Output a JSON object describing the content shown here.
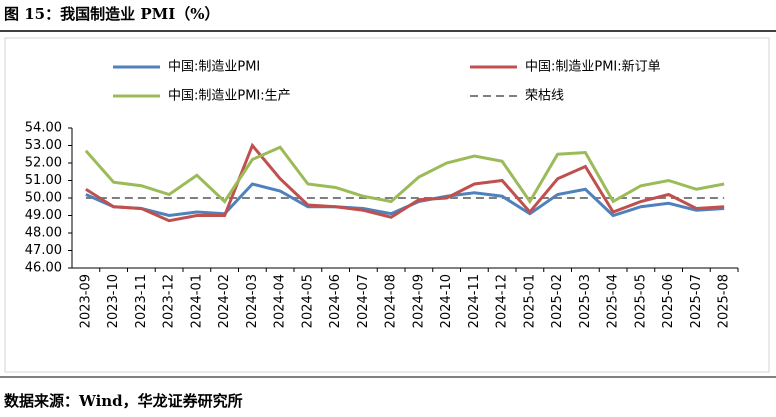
{
  "chart_data": {
    "type": "line",
    "title": "图 15：我国制造业 PMI（%）",
    "source": "数据来源：Wind，华龙证券研究所",
    "categories": [
      "2023-09",
      "2023-10",
      "2023-11",
      "2023-12",
      "2024-01",
      "2024-02",
      "2024-03",
      "2024-04",
      "2024-05",
      "2024-06",
      "2024-07",
      "2024-08",
      "2024-09",
      "2024-10",
      "2024-11",
      "2024-12",
      "2025-01",
      "2025-02",
      "2025-03",
      "2025-04",
      "2025-05",
      "2025-06",
      "2025-07",
      "2025-08"
    ],
    "series": [
      {
        "name": "中国:制造业PMI",
        "color": "#4f81bd",
        "values": [
          50.2,
          49.5,
          49.4,
          49.0,
          49.2,
          49.1,
          50.8,
          50.4,
          49.5,
          49.5,
          49.4,
          49.1,
          49.8,
          50.1,
          50.3,
          50.1,
          49.1,
          50.2,
          50.5,
          49.0,
          49.5,
          49.7,
          49.3,
          49.4
        ]
      },
      {
        "name": "中国:制造业PMI:新订单",
        "color": "#c0504d",
        "values": [
          50.5,
          49.5,
          49.4,
          48.7,
          49.0,
          49.0,
          53.0,
          51.1,
          49.6,
          49.5,
          49.3,
          48.9,
          49.9,
          50.0,
          50.8,
          51.0,
          49.2,
          51.1,
          51.8,
          49.2,
          49.8,
          50.2,
          49.4,
          49.5
        ]
      },
      {
        "name": "中国:制造业PMI:生产",
        "color": "#9bbb59",
        "values": [
          52.7,
          50.9,
          50.7,
          50.2,
          51.3,
          49.8,
          52.2,
          52.9,
          50.8,
          50.6,
          50.1,
          49.8,
          51.2,
          52.0,
          52.4,
          52.1,
          49.8,
          52.5,
          52.6,
          49.8,
          50.7,
          51.0,
          50.5,
          50.8
        ]
      }
    ],
    "reference_line": {
      "name": "荣枯线",
      "value": 50,
      "color": "#7f7f7f"
    },
    "ylim": [
      46,
      54
    ],
    "yticks": [
      {
        "value": 46,
        "label": "46.00"
      },
      {
        "value": 47,
        "label": "47.00"
      },
      {
        "value": 48,
        "label": "48.00"
      },
      {
        "value": 49,
        "label": "49.00"
      },
      {
        "value": 50,
        "label": "50.00"
      },
      {
        "value": 51,
        "label": "51.00"
      },
      {
        "value": 52,
        "label": "52.00"
      },
      {
        "value": 53,
        "label": "53.00"
      },
      {
        "value": 54,
        "label": "54.00"
      }
    ]
  }
}
